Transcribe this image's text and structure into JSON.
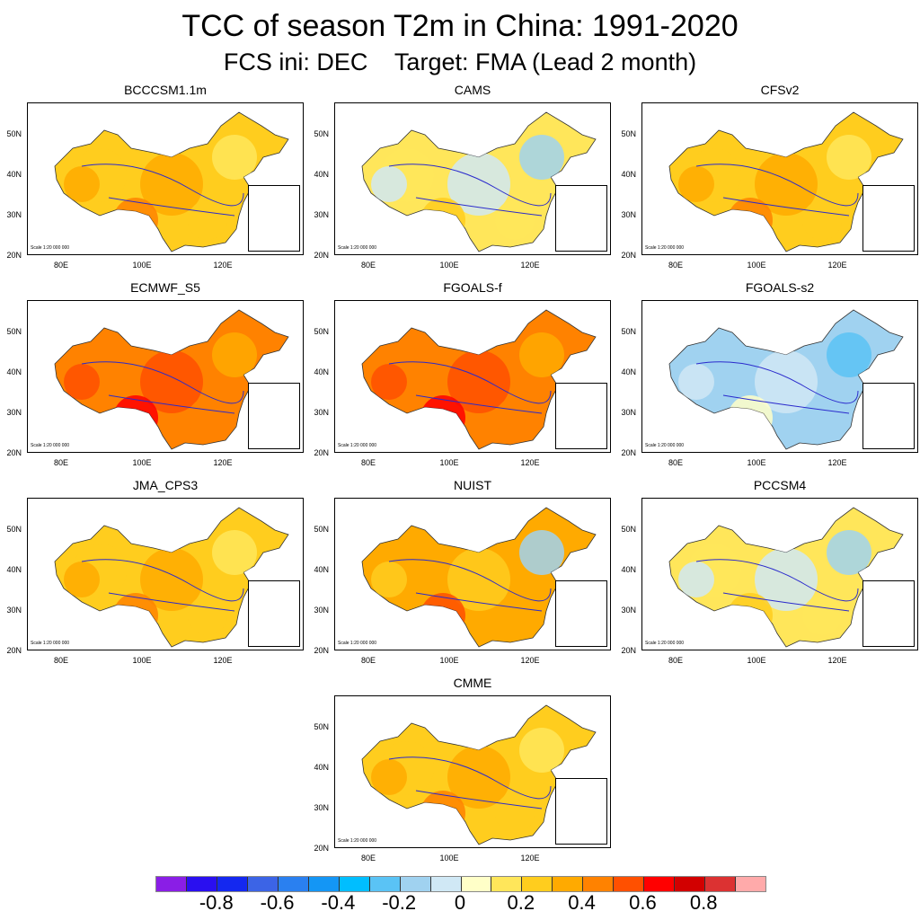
{
  "title": "TCC of season T2m in China: 1991-2020",
  "subtitle": "FCS ini: DEC    Target: FMA (Lead 2 month)",
  "scale_text": "Scale 1:20 000 000",
  "lat_labels": [
    "50N",
    "40N",
    "30N",
    "20N"
  ],
  "lon_labels": [
    "80E",
    "100E",
    "120E"
  ],
  "panels": [
    {
      "name": "BCCCSM1.1m",
      "tone": "warm",
      "mean_tcc": 0.35
    },
    {
      "name": "CAMS",
      "tone": "mixed-cool",
      "mean_tcc": 0.05
    },
    {
      "name": "CFSv2",
      "tone": "warm",
      "mean_tcc": 0.35
    },
    {
      "name": "ECMWF_S5",
      "tone": "hot",
      "mean_tcc": 0.5
    },
    {
      "name": "FGOALS-f",
      "tone": "hot",
      "mean_tcc": 0.45
    },
    {
      "name": "FGOALS-s2",
      "tone": "cool",
      "mean_tcc": -0.2
    },
    {
      "name": "JMA_CPS3",
      "tone": "warm",
      "mean_tcc": 0.4
    },
    {
      "name": "NUIST",
      "tone": "mixed",
      "mean_tcc": 0.2
    },
    {
      "name": "PCCSM4",
      "tone": "mixed-cool",
      "mean_tcc": 0.0
    },
    {
      "name": "CMME",
      "tone": "warm",
      "mean_tcc": 0.4
    }
  ],
  "colorbar": {
    "colors": [
      "#8a1ee6",
      "#2a0ff0",
      "#1428f0",
      "#3c64e6",
      "#2a80f0",
      "#1496f5",
      "#00beff",
      "#5ac3f5",
      "#a0d2f0",
      "#d0e8f5",
      "#ffffc8",
      "#ffe65a",
      "#ffcd1e",
      "#ffaa00",
      "#ff8200",
      "#ff5000",
      "#ff0000",
      "#d20000",
      "#dc3232",
      "#ffaaaa"
    ],
    "labels": [
      "-0.8",
      "-0.6",
      "-0.4",
      "-0.2",
      "0",
      "0.2",
      "0.4",
      "0.6",
      "0.8"
    ]
  }
}
